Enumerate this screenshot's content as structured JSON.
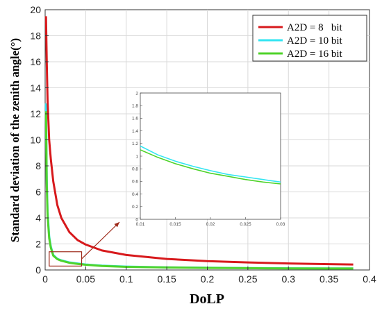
{
  "chart_data": {
    "type": "line",
    "xlabel": "DoLP",
    "ylabel": "Standard deviation of the zenith angle(°)",
    "xlim": [
      0,
      0.4
    ],
    "ylim": [
      0,
      20
    ],
    "xticks": [
      "0",
      "0.05",
      "0.1",
      "0.15",
      "0.2",
      "0.25",
      "0.3",
      "0.35",
      "0.4"
    ],
    "yticks": [
      "0",
      "2",
      "4",
      "6",
      "8",
      "10",
      "12",
      "14",
      "16",
      "18",
      "20"
    ],
    "grid": true,
    "legend_position": "top-right",
    "series": [
      {
        "name": "A2D = 8   bit",
        "color": "#d7191c",
        "x": [
          0.001,
          0.002,
          0.003,
          0.005,
          0.007,
          0.01,
          0.015,
          0.02,
          0.03,
          0.04,
          0.05,
          0.07,
          0.1,
          0.15,
          0.2,
          0.25,
          0.3,
          0.35,
          0.38
        ],
        "y": [
          19.5,
          16.0,
          13.0,
          10.0,
          8.5,
          6.8,
          5.0,
          4.0,
          2.9,
          2.3,
          1.95,
          1.5,
          1.15,
          0.85,
          0.68,
          0.58,
          0.5,
          0.45,
          0.42
        ]
      },
      {
        "name": "A2D = 10 bit",
        "color": "#33e5f2",
        "x": [
          0.001,
          0.002,
          0.003,
          0.005,
          0.007,
          0.01,
          0.015,
          0.02,
          0.03,
          0.04,
          0.05,
          0.07,
          0.1,
          0.15,
          0.2,
          0.25,
          0.3,
          0.35,
          0.38
        ],
        "y": [
          12.8,
          7.0,
          4.5,
          2.6,
          1.8,
          1.15,
          0.86,
          0.74,
          0.58,
          0.5,
          0.42,
          0.33,
          0.26,
          0.2,
          0.17,
          0.15,
          0.13,
          0.12,
          0.12
        ]
      },
      {
        "name": "A2D = 16 bit",
        "color": "#4fd32a",
        "x": [
          0.001,
          0.002,
          0.003,
          0.005,
          0.007,
          0.01,
          0.015,
          0.02,
          0.03,
          0.04,
          0.05,
          0.07,
          0.1,
          0.15,
          0.2,
          0.25,
          0.3,
          0.35,
          0.38
        ],
        "y": [
          12.2,
          6.6,
          4.2,
          2.45,
          1.7,
          1.1,
          0.83,
          0.71,
          0.55,
          0.47,
          0.4,
          0.31,
          0.24,
          0.19,
          0.16,
          0.14,
          0.12,
          0.11,
          0.11
        ]
      }
    ],
    "inset": {
      "xlim": [
        0.01,
        0.03
      ],
      "ylim": [
        0,
        2
      ],
      "xticks": [
        "0.01",
        "0.015",
        "0.02",
        "0.025",
        "0.03"
      ],
      "yticks": [
        "0",
        "0.2",
        "0.4",
        "0.6",
        "0.8",
        "1",
        "1.2",
        "1.4",
        "1.6",
        "1.8",
        "2"
      ],
      "series": [
        {
          "name": "A2D = 10 bit",
          "color": "#33e5f2",
          "x": [
            0.01,
            0.0125,
            0.015,
            0.0175,
            0.02,
            0.0225,
            0.025,
            0.0275,
            0.03
          ],
          "y": [
            1.16,
            1.02,
            0.92,
            0.84,
            0.77,
            0.71,
            0.67,
            0.63,
            0.59
          ]
        },
        {
          "name": "A2D = 16 bit",
          "color": "#4fd32a",
          "x": [
            0.01,
            0.0125,
            0.015,
            0.0175,
            0.02,
            0.0225,
            0.025,
            0.0275,
            0.03
          ],
          "y": [
            1.1,
            0.98,
            0.88,
            0.8,
            0.73,
            0.68,
            0.63,
            0.59,
            0.56
          ]
        }
      ]
    },
    "zoom_box": {
      "xlim": [
        0.005,
        0.045
      ],
      "ylim": [
        0.3,
        1.4
      ]
    }
  }
}
